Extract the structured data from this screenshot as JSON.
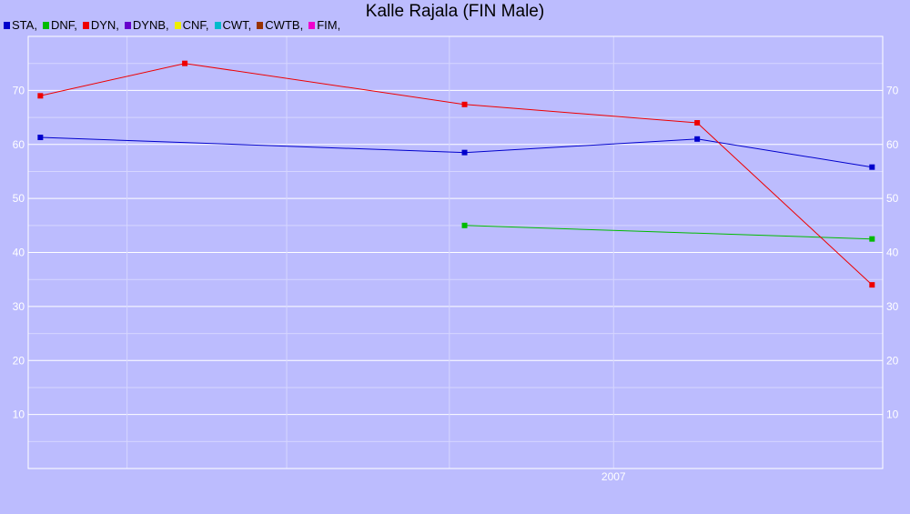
{
  "chart_data": {
    "type": "line",
    "title": "Kalle Rajala (FIN Male)",
    "xlabel": "",
    "ylabel": "",
    "x_ticks": [
      "2007"
    ],
    "y_ticks": [
      10,
      20,
      30,
      40,
      50,
      60,
      70
    ],
    "ylim": [
      0,
      80
    ],
    "grid": true,
    "legend": [
      {
        "label": "STA,",
        "color": "#0000cc"
      },
      {
        "label": "DNF,",
        "color": "#00bb00"
      },
      {
        "label": "DYN,",
        "color": "#ee0000"
      },
      {
        "label": "DYNB,",
        "color": "#6600cc"
      },
      {
        "label": "CNF,",
        "color": "#eeee00"
      },
      {
        "label": "CWT,",
        "color": "#00bbcc"
      },
      {
        "label": "CWTB,",
        "color": "#993300"
      },
      {
        "label": "FIM,",
        "color": "#ee00cc"
      }
    ],
    "series": [
      {
        "name": "STA",
        "color": "#0000cc",
        "points": [
          [
            "2005-12-20",
            61.3
          ],
          [
            "2006-09-25",
            58.5
          ],
          [
            "2007-02-25",
            61.0
          ],
          [
            "2007-06-20",
            55.8
          ]
        ]
      },
      {
        "name": "DNF",
        "color": "#00bb00",
        "points": [
          [
            "2006-09-25",
            45.0
          ],
          [
            "2007-06-20",
            42.5
          ]
        ]
      },
      {
        "name": "DYN",
        "color": "#ee0000",
        "points": [
          [
            "2005-12-20",
            69.0
          ],
          [
            "2006-03-25",
            75.0
          ],
          [
            "2006-09-25",
            67.4
          ],
          [
            "2007-02-25",
            64.0
          ],
          [
            "2007-06-20",
            34.0
          ]
        ]
      }
    ]
  }
}
